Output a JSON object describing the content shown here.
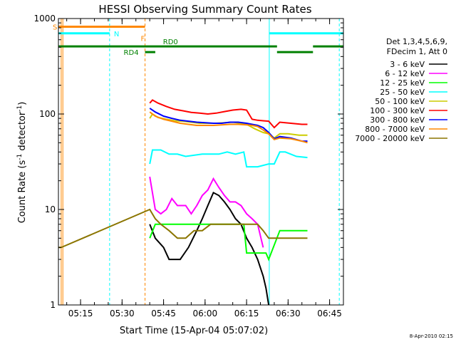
{
  "chart_data": {
    "type": "line",
    "title": "HESSI Observing Summary Count Rates",
    "xlabel": "Start Time (15-Apr-04 05:07:02)",
    "ylabel_main": "Count Rate (s",
    "ylabel_sup1": "-1",
    "ylabel_mid": " detector",
    "ylabel_sup2": "-1",
    "ylabel_end": ")",
    "yscale": "log",
    "ylim": [
      1,
      1000
    ],
    "xlim_minutes": [
      0,
      103
    ],
    "x_tick_labels": [
      {
        "label": "05:15",
        "t": 8
      },
      {
        "label": "05:30",
        "t": 23
      },
      {
        "label": "05:45",
        "t": 38
      },
      {
        "label": "06:00",
        "t": 53
      },
      {
        "label": "06:15",
        "t": 68
      },
      {
        "label": "06:30",
        "t": 83
      },
      {
        "label": "06:45",
        "t": 98
      }
    ],
    "y_tick_labels": [
      {
        "label": "1",
        "v": 1
      },
      {
        "label": "10",
        "v": 10
      },
      {
        "label": "100",
        "v": 100
      },
      {
        "label": "1000",
        "v": 1000
      }
    ],
    "legend_header": [
      "Det 1,3,4,5,6,9,",
      "FDecim 1, Att 0"
    ],
    "series": [
      {
        "name": "3 - 6 keV",
        "color": "#000000",
        "points": [
          [
            33,
            7
          ],
          [
            35,
            5
          ],
          [
            38,
            4
          ],
          [
            40,
            3
          ],
          [
            44,
            3
          ],
          [
            47,
            4
          ],
          [
            50,
            6
          ],
          [
            52,
            8
          ],
          [
            54,
            11
          ],
          [
            56,
            15
          ],
          [
            58,
            14
          ],
          [
            60,
            12
          ],
          [
            62,
            10
          ],
          [
            64,
            8
          ],
          [
            66,
            7
          ],
          [
            68,
            5
          ],
          [
            70,
            4
          ],
          [
            72,
            3
          ],
          [
            74,
            2
          ],
          [
            75,
            1.5
          ],
          [
            76,
            1
          ]
        ]
      },
      {
        "name": "6 - 12 keV",
        "color": "#ff00ff",
        "points": [
          [
            33,
            22
          ],
          [
            35,
            10
          ],
          [
            37,
            9
          ],
          [
            39,
            10
          ],
          [
            41,
            13
          ],
          [
            43,
            11
          ],
          [
            46,
            11
          ],
          [
            48,
            9
          ],
          [
            50,
            11
          ],
          [
            52,
            14
          ],
          [
            54,
            16
          ],
          [
            56,
            21
          ],
          [
            58,
            17
          ],
          [
            60,
            14
          ],
          [
            62,
            12
          ],
          [
            64,
            12
          ],
          [
            66,
            11
          ],
          [
            68,
            9
          ],
          [
            70,
            8
          ],
          [
            72,
            7
          ],
          [
            74,
            4
          ]
        ]
      },
      {
        "name": "12 - 25 keV",
        "color": "#00ff00",
        "points": [
          [
            33,
            5
          ],
          [
            35,
            7
          ],
          [
            37,
            7
          ],
          [
            40,
            7
          ],
          [
            43,
            7
          ],
          [
            46,
            7
          ],
          [
            49,
            7
          ],
          [
            52,
            7
          ],
          [
            55,
            7
          ],
          [
            58,
            7
          ],
          [
            61,
            7
          ],
          [
            64,
            7
          ],
          [
            67,
            7
          ],
          [
            68,
            3.5
          ],
          [
            72,
            3.5
          ],
          [
            75,
            3.5
          ],
          [
            76,
            3
          ],
          [
            80,
            6
          ],
          [
            82,
            6
          ],
          [
            86,
            6
          ],
          [
            90,
            6
          ]
        ]
      },
      {
        "name": "25 - 50 keV",
        "color": "#00ffff",
        "points": [
          [
            33,
            30
          ],
          [
            34,
            42
          ],
          [
            37,
            42
          ],
          [
            40,
            38
          ],
          [
            43,
            38
          ],
          [
            46,
            36
          ],
          [
            49,
            37
          ],
          [
            52,
            38
          ],
          [
            55,
            38
          ],
          [
            58,
            38
          ],
          [
            61,
            40
          ],
          [
            64,
            38
          ],
          [
            67,
            40
          ],
          [
            68,
            28
          ],
          [
            72,
            28
          ],
          [
            76,
            30
          ],
          [
            78,
            30
          ],
          [
            80,
            40
          ],
          [
            82,
            40
          ],
          [
            86,
            36
          ],
          [
            90,
            35
          ]
        ]
      },
      {
        "name": "50 - 100 keV",
        "color": "#cccc00",
        "points": [
          [
            33,
            90
          ],
          [
            34,
            100
          ],
          [
            36,
            92
          ],
          [
            39,
            88
          ],
          [
            42,
            85
          ],
          [
            45,
            84
          ],
          [
            48,
            82
          ],
          [
            51,
            80
          ],
          [
            54,
            80
          ],
          [
            57,
            80
          ],
          [
            60,
            81
          ],
          [
            63,
            82
          ],
          [
            66,
            80
          ],
          [
            68,
            78
          ],
          [
            71,
            70
          ],
          [
            74,
            64
          ],
          [
            76,
            62
          ],
          [
            78,
            56
          ],
          [
            80,
            62
          ],
          [
            83,
            62
          ],
          [
            87,
            60
          ],
          [
            90,
            60
          ]
        ]
      },
      {
        "name": "100 - 300 keV",
        "color": "#ff0000",
        "points": [
          [
            33,
            130
          ],
          [
            34,
            140
          ],
          [
            36,
            130
          ],
          [
            39,
            120
          ],
          [
            42,
            112
          ],
          [
            45,
            108
          ],
          [
            48,
            104
          ],
          [
            51,
            102
          ],
          [
            54,
            100
          ],
          [
            57,
            102
          ],
          [
            60,
            106
          ],
          [
            63,
            110
          ],
          [
            66,
            112
          ],
          [
            68,
            110
          ],
          [
            70,
            88
          ],
          [
            72,
            86
          ],
          [
            74,
            85
          ],
          [
            76,
            84
          ],
          [
            78,
            72
          ],
          [
            80,
            82
          ],
          [
            84,
            80
          ],
          [
            88,
            78
          ],
          [
            90,
            78
          ]
        ]
      },
      {
        "name": "300 - 800 keV",
        "color": "#0000ff",
        "points": [
          [
            33,
            115
          ],
          [
            35,
            105
          ],
          [
            38,
            95
          ],
          [
            41,
            90
          ],
          [
            44,
            86
          ],
          [
            47,
            84
          ],
          [
            50,
            82
          ],
          [
            53,
            81
          ],
          [
            56,
            80
          ],
          [
            59,
            80
          ],
          [
            62,
            82
          ],
          [
            65,
            82
          ],
          [
            68,
            80
          ],
          [
            70,
            78
          ],
          [
            72,
            76
          ],
          [
            74,
            72
          ],
          [
            76,
            64
          ],
          [
            78,
            55
          ],
          [
            80,
            58
          ],
          [
            84,
            56
          ],
          [
            88,
            52
          ],
          [
            90,
            52
          ]
        ]
      },
      {
        "name": "800 - 7000 keV",
        "color": "#ff8800",
        "points": [
          [
            33,
            105
          ],
          [
            35,
            95
          ],
          [
            38,
            88
          ],
          [
            41,
            84
          ],
          [
            44,
            80
          ],
          [
            47,
            78
          ],
          [
            50,
            76
          ],
          [
            53,
            76
          ],
          [
            56,
            76
          ],
          [
            59,
            77
          ],
          [
            62,
            78
          ],
          [
            65,
            78
          ],
          [
            68,
            77
          ],
          [
            70,
            76
          ],
          [
            72,
            74
          ],
          [
            74,
            68
          ],
          [
            76,
            62
          ],
          [
            78,
            54
          ],
          [
            80,
            56
          ],
          [
            84,
            55
          ],
          [
            88,
            52
          ],
          [
            90,
            50
          ]
        ]
      },
      {
        "name": "7000 - 20000 keV",
        "color": "#8b7500",
        "points": [
          [
            0,
            4
          ],
          [
            1,
            4
          ],
          [
            33,
            10
          ],
          [
            35,
            8
          ],
          [
            37,
            7
          ],
          [
            40,
            6
          ],
          [
            43,
            5
          ],
          [
            46,
            5
          ],
          [
            49,
            6
          ],
          [
            52,
            6
          ],
          [
            55,
            7
          ],
          [
            58,
            7
          ],
          [
            61,
            7
          ],
          [
            64,
            7
          ],
          [
            67,
            7
          ],
          [
            70,
            7
          ],
          [
            72,
            7
          ],
          [
            74,
            6
          ],
          [
            76,
            5
          ],
          [
            80,
            5
          ],
          [
            84,
            5
          ],
          [
            88,
            5
          ],
          [
            90,
            5
          ]
        ]
      }
    ],
    "top_flags": [
      {
        "label": "S",
        "color": "#ff8800",
        "level": 820,
        "t0": 0,
        "t1": 31.3
      },
      {
        "label": "N",
        "color": "#00ffff",
        "level": 700,
        "t0": 0,
        "t1": 18.5
      },
      {
        "label": "F",
        "color": "#ff8800",
        "level": 0,
        "t0": 31.3,
        "t1": 31.3
      },
      {
        "label": "RD0",
        "color": "#008000",
        "level": 510,
        "t0": 0,
        "t1": 79
      },
      {
        "label": "RD4",
        "color": "#008000",
        "level": 445,
        "t0": 31.3,
        "t1": 35
      }
    ],
    "footer_date": "8-Apr-2010 02:15"
  }
}
